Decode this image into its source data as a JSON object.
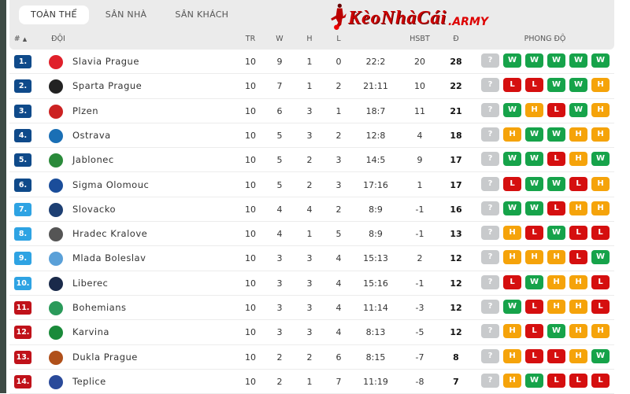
{
  "tabs": [
    {
      "label": "TOÀN THỂ",
      "active": true
    },
    {
      "label": "SÂN NHÀ",
      "active": false
    },
    {
      "label": "SÂN KHÁCH",
      "active": false
    }
  ],
  "columns": {
    "rank": "#",
    "sort_icon": "▲",
    "team": "ĐỘI",
    "played": "TR",
    "won": "W",
    "draw": "H",
    "lost": "L",
    "goal_diff": "HSBT",
    "points": "Đ",
    "form": "PHONG ĐỘ"
  },
  "watermark": {
    "brand": "KèoNhàCái",
    "suffix": ".ARMY"
  },
  "colors": {
    "rank_top": "#0f4a8a",
    "rank_mid": "#2ea3e3",
    "rank_bottom": "#c0121a",
    "W": "#16a34a",
    "H": "#f5a30a",
    "L": "#d50f0f",
    "?": "#c8cacc"
  },
  "rows": [
    {
      "rank": "1.",
      "team": "Slavia Prague",
      "tr": "10",
      "w": "9",
      "h": "1",
      "l": "0",
      "goals": "22:2",
      "hsbt": "20",
      "pts": "28",
      "zone": "top",
      "form": [
        "?",
        "W",
        "W",
        "W",
        "W",
        "W"
      ]
    },
    {
      "rank": "2.",
      "team": "Sparta Prague",
      "tr": "10",
      "w": "7",
      "h": "1",
      "l": "2",
      "goals": "21:11",
      "hsbt": "10",
      "pts": "22",
      "zone": "top",
      "form": [
        "?",
        "L",
        "L",
        "W",
        "W",
        "H"
      ]
    },
    {
      "rank": "3.",
      "team": "Plzen",
      "tr": "10",
      "w": "6",
      "h": "3",
      "l": "1",
      "goals": "18:7",
      "hsbt": "11",
      "pts": "21",
      "zone": "top",
      "form": [
        "?",
        "W",
        "H",
        "L",
        "W",
        "H"
      ]
    },
    {
      "rank": "4.",
      "team": "Ostrava",
      "tr": "10",
      "w": "5",
      "h": "3",
      "l": "2",
      "goals": "12:8",
      "hsbt": "4",
      "pts": "18",
      "zone": "top",
      "form": [
        "?",
        "H",
        "W",
        "W",
        "H",
        "H"
      ]
    },
    {
      "rank": "5.",
      "team": "Jablonec",
      "tr": "10",
      "w": "5",
      "h": "2",
      "l": "3",
      "goals": "14:5",
      "hsbt": "9",
      "pts": "17",
      "zone": "top",
      "form": [
        "?",
        "W",
        "W",
        "L",
        "H",
        "W"
      ]
    },
    {
      "rank": "6.",
      "team": "Sigma Olomouc",
      "tr": "10",
      "w": "5",
      "h": "2",
      "l": "3",
      "goals": "17:16",
      "hsbt": "1",
      "pts": "17",
      "zone": "top",
      "form": [
        "?",
        "L",
        "W",
        "W",
        "L",
        "H"
      ]
    },
    {
      "rank": "7.",
      "team": "Slovacko",
      "tr": "10",
      "w": "4",
      "h": "4",
      "l": "2",
      "goals": "8:9",
      "hsbt": "-1",
      "pts": "16",
      "zone": "mid",
      "form": [
        "?",
        "W",
        "W",
        "L",
        "H",
        "H"
      ]
    },
    {
      "rank": "8.",
      "team": "Hradec Kralove",
      "tr": "10",
      "w": "4",
      "h": "1",
      "l": "5",
      "goals": "8:9",
      "hsbt": "-1",
      "pts": "13",
      "zone": "mid",
      "form": [
        "?",
        "H",
        "L",
        "W",
        "L",
        "L"
      ]
    },
    {
      "rank": "9.",
      "team": "Mlada Boleslav",
      "tr": "10",
      "w": "3",
      "h": "3",
      "l": "4",
      "goals": "15:13",
      "hsbt": "2",
      "pts": "12",
      "zone": "mid",
      "form": [
        "?",
        "H",
        "H",
        "H",
        "L",
        "W"
      ]
    },
    {
      "rank": "10.",
      "team": "Liberec",
      "tr": "10",
      "w": "3",
      "h": "3",
      "l": "4",
      "goals": "15:16",
      "hsbt": "-1",
      "pts": "12",
      "zone": "mid",
      "form": [
        "?",
        "L",
        "W",
        "H",
        "H",
        "L"
      ]
    },
    {
      "rank": "11.",
      "team": "Bohemians",
      "tr": "10",
      "w": "3",
      "h": "3",
      "l": "4",
      "goals": "11:14",
      "hsbt": "-3",
      "pts": "12",
      "zone": "bottom",
      "form": [
        "?",
        "W",
        "L",
        "H",
        "H",
        "L"
      ]
    },
    {
      "rank": "12.",
      "team": "Karvina",
      "tr": "10",
      "w": "3",
      "h": "3",
      "l": "4",
      "goals": "8:13",
      "hsbt": "-5",
      "pts": "12",
      "zone": "bottom",
      "form": [
        "?",
        "H",
        "L",
        "W",
        "H",
        "H"
      ]
    },
    {
      "rank": "13.",
      "team": "Dukla Prague",
      "tr": "10",
      "w": "2",
      "h": "2",
      "l": "6",
      "goals": "8:15",
      "hsbt": "-7",
      "pts": "8",
      "zone": "bottom",
      "form": [
        "?",
        "H",
        "L",
        "L",
        "H",
        "W"
      ]
    },
    {
      "rank": "14.",
      "team": "Teplice",
      "tr": "10",
      "w": "2",
      "h": "1",
      "l": "7",
      "goals": "11:19",
      "hsbt": "-8",
      "pts": "7",
      "zone": "bottom",
      "form": [
        "?",
        "H",
        "W",
        "L",
        "L",
        "L"
      ]
    }
  ]
}
